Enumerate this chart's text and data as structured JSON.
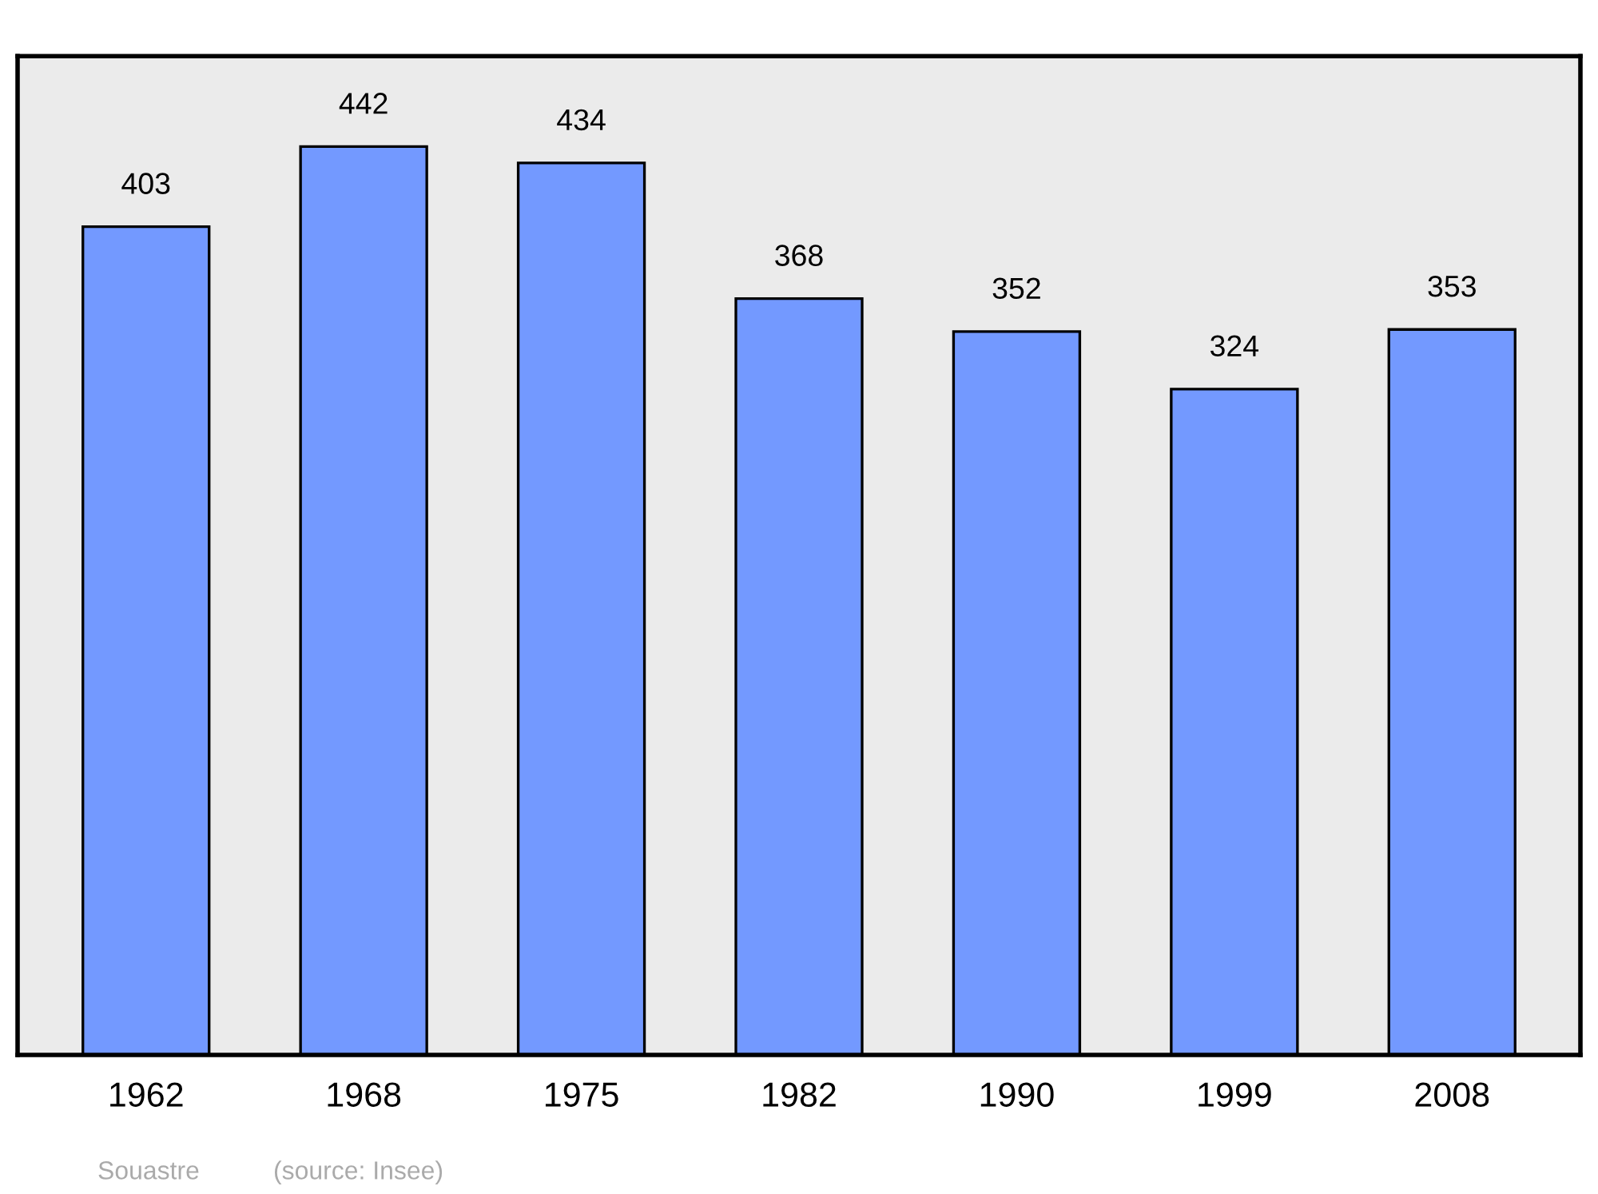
{
  "chart_data": {
    "type": "bar",
    "categories": [
      "1962",
      "1968",
      "1975",
      "1982",
      "1990",
      "1999",
      "2008"
    ],
    "values": [
      403,
      442,
      434,
      368,
      352,
      324,
      353
    ],
    "color": "#7399ff",
    "ylim": [
      0,
      486
    ],
    "tick_labels": "x",
    "data_labels": true,
    "grid": false,
    "legend": false,
    "annotations": [
      "Souastre",
      "(source: Insee)"
    ]
  }
}
